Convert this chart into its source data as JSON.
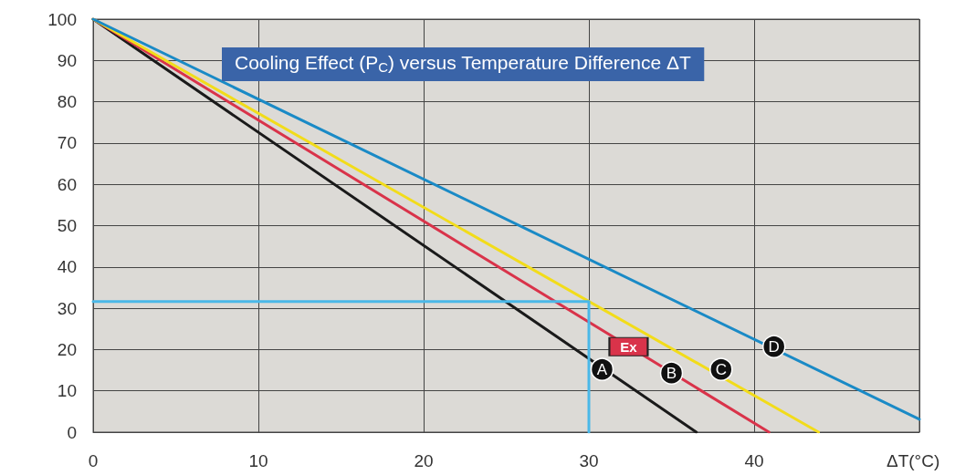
{
  "chart_data": {
    "type": "line",
    "title": "Cooling Effect (P$_{C}$) versus Temperature Difference ΔT",
    "xlabel": "ΔT(°C)",
    "xlim": [
      0,
      50
    ],
    "ylim": [
      0,
      100
    ],
    "xticks": [
      0,
      10,
      20,
      30,
      40,
      {
        "value": 50,
        "label": null
      }
    ],
    "yticks": [
      0,
      10,
      20,
      30,
      40,
      50,
      60,
      70,
      80,
      90,
      100
    ],
    "grid": true,
    "marker": "none",
    "line_style": "solid",
    "series": [
      {
        "color": "#1a1a1a",
        "x": [
          0,
          36.5
        ],
        "values": [
          100,
          0
        ]
      },
      {
        "color": "#d9334a",
        "x": [
          0,
          40.9
        ],
        "values": [
          100,
          0
        ]
      },
      {
        "color": "#f2dc1a",
        "x": [
          0,
          43.9
        ],
        "values": [
          100,
          0
        ]
      },
      {
        "color": "#1a8ac6",
        "x": [
          0,
          50
        ],
        "values": [
          100,
          3.1
        ]
      },
      {
        "color": "#4ab8e8",
        "x": [
          0,
          30,
          30
        ],
        "values": [
          31.6,
          31.6,
          0
        ]
      }
    ],
    "annotations": [
      {
        "text": "Ex",
        "x": 32.4,
        "y": 20.7
      },
      {
        "text": "A",
        "x": 30.8,
        "y": 15.2
      },
      {
        "text": "B",
        "x": 35.0,
        "y": 14.3
      },
      {
        "text": "C",
        "x": 38.0,
        "y": 15.2
      },
      {
        "text": "D",
        "x": 41.2,
        "y": 20.7
      }
    ]
  }
}
